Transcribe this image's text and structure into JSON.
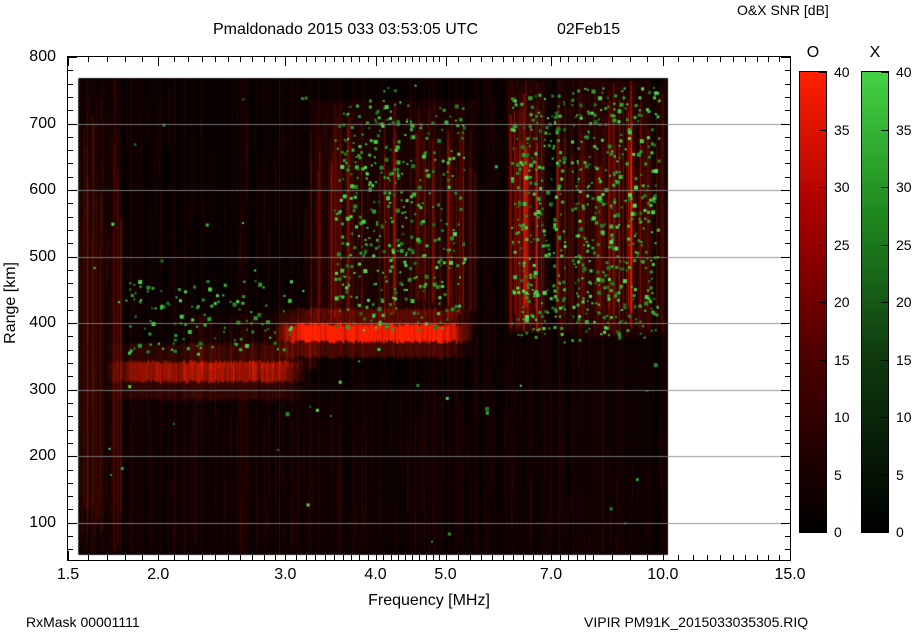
{
  "header": {
    "title": "Pmaldonado 2015 033 03:53:05 UTC",
    "date_label": "02Feb15",
    "colorbar_title": "O&X SNR [dB]"
  },
  "footer": {
    "left": "RxMask 00001111",
    "right": "VIPIR  PM91K_2015033035305.RIQ"
  },
  "colors": {
    "o_mode_accent": "#ff2000",
    "x_mode_accent": "#45d245",
    "grid": "#878787",
    "background": "#ffffff",
    "data_background": "#000000"
  },
  "chart_data": {
    "type": "heatmap",
    "title": "Pmaldonado 2015 033 03:53:05 UTC",
    "date": "02Feb15",
    "xlabel": "Frequency [MHz]",
    "ylabel": "Range [km]",
    "x_scale": "log",
    "xlim": [
      1.5,
      15.0
    ],
    "ylim": [
      44,
      800
    ],
    "x_major_ticks": [
      1.5,
      2.0,
      3.0,
      4.0,
      5.0,
      7.0,
      10.0,
      15.0
    ],
    "x_major_tick_labels": [
      "1.5",
      "2.0",
      "3.0",
      "4.0",
      "5.0",
      "7.0",
      "10.0",
      "15.0"
    ],
    "x_minor_ticks": [
      1.6,
      1.7,
      1.8,
      1.9,
      2.1,
      2.2,
      2.3,
      2.4,
      2.5,
      2.6,
      2.7,
      2.8,
      2.9,
      3.1,
      3.2,
      3.3,
      3.4,
      3.5,
      3.6,
      3.7,
      3.8,
      3.9,
      4.1,
      4.2,
      4.3,
      4.4,
      4.5,
      4.6,
      4.7,
      4.8,
      4.9,
      5.2,
      5.4,
      5.6,
      5.8,
      6.0,
      6.2,
      6.4,
      6.6,
      6.8,
      7.2,
      7.4,
      7.6,
      7.8,
      8.0,
      8.5,
      9.0,
      9.5,
      10.5,
      11.0,
      11.5,
      12.0,
      12.5,
      13.0,
      13.5,
      14.0,
      14.5
    ],
    "y_major_ticks": [
      800,
      700,
      600,
      500,
      400,
      300,
      200,
      100
    ],
    "y_major_tick_labels": [
      "800",
      "700",
      "600",
      "500",
      "400",
      "300",
      "200",
      "100"
    ],
    "y_minor_step": 20,
    "grid_lines_km": [
      100,
      200,
      300,
      400,
      500,
      600,
      700
    ],
    "data_extent": {
      "f_min": 1.55,
      "f_max": 10.15,
      "r_min": 52,
      "r_max": 768
    },
    "colorbars": [
      {
        "label": "O",
        "mode": "O-mode",
        "color_scale": "black-to-red",
        "min": 0,
        "max": 40,
        "ticks": [
          0,
          5,
          10,
          15,
          20,
          25,
          30,
          35,
          40
        ],
        "tick_labels": [
          "0",
          "5",
          "10",
          "15",
          "20",
          "25",
          "30",
          "35",
          "40"
        ],
        "gradient": [
          [
            "#000000",
            0
          ],
          [
            "#4c0000",
            38
          ],
          [
            "#aa0000",
            70
          ],
          [
            "#ff2000",
            100
          ]
        ]
      },
      {
        "label": "X",
        "mode": "X-mode",
        "color_scale": "black-to-green",
        "min": 0,
        "max": 40,
        "ticks": [
          0,
          5,
          10,
          15,
          20,
          25,
          30,
          35,
          40
        ],
        "tick_labels": [
          "0",
          "5",
          "10",
          "15",
          "20",
          "25",
          "30",
          "35",
          "40"
        ],
        "gradient": [
          [
            "#000000",
            0
          ],
          [
            "#0f3a0f",
            38
          ],
          [
            "#1f8a1f",
            70
          ],
          [
            "#45d245",
            100
          ]
        ]
      }
    ],
    "features": [
      {
        "name": "left-edge-rfi-striation",
        "type": "red_diffuse",
        "f0": 1.55,
        "f1": 1.78,
        "r0": 55,
        "r1": 765,
        "intensity": 0.3,
        "density": 1.0
      },
      {
        "name": "low-band-noise-floor",
        "type": "red_diffuse",
        "f0": 1.8,
        "f1": 5.4,
        "r0": 55,
        "r1": 310,
        "intensity": 0.1,
        "density": 0.3
      },
      {
        "name": "high-band-noise-floor",
        "type": "red_diffuse",
        "f0": 6.1,
        "f1": 10.0,
        "r0": 55,
        "r1": 380,
        "intensity": 0.07,
        "density": 0.15
      },
      {
        "name": "lower-echo-trace-320km",
        "type": "red_band",
        "f0": 1.7,
        "f1": 3.2,
        "r0": 312,
        "r1": 342,
        "intensity": 0.55
      },
      {
        "name": "echo-wing",
        "type": "red_diffuse",
        "f0": 2.2,
        "f1": 3.35,
        "r0": 330,
        "r1": 415,
        "intensity": 0.25,
        "density": 0.5
      },
      {
        "name": "main-F-trace-385km",
        "type": "red_band",
        "f0": 2.9,
        "f1": 5.45,
        "r0": 372,
        "r1": 398,
        "intensity": 0.95
      },
      {
        "name": "spread-F-red",
        "type": "red_diffuse",
        "f0": 3.25,
        "f1": 5.5,
        "r0": 395,
        "r1": 735,
        "intensity": 0.5,
        "density": 0.6
      },
      {
        "name": "red-column-6.1-6.85MHz",
        "type": "red_diffuse",
        "f0": 6.1,
        "f1": 6.85,
        "r0": 385,
        "r1": 765,
        "intensity": 0.8,
        "density": 0.8
      },
      {
        "name": "red-column-7.1-7.55MHz",
        "type": "red_diffuse",
        "f0": 7.1,
        "f1": 7.55,
        "r0": 385,
        "r1": 765,
        "intensity": 0.5,
        "density": 0.7
      },
      {
        "name": "red-column-7.6-9.6MHz",
        "type": "red_diffuse",
        "f0": 7.6,
        "f1": 9.6,
        "r0": 380,
        "r1": 765,
        "intensity": 0.65,
        "density": 0.8
      },
      {
        "name": "red-column-9.6-10.1MHz",
        "type": "red_diffuse",
        "f0": 9.6,
        "f1": 10.1,
        "r0": 380,
        "r1": 760,
        "intensity": 0.35,
        "density": 0.6
      },
      {
        "name": "x-mode-cluster-2MHz",
        "type": "green_speckle",
        "f0": 1.8,
        "f1": 3.05,
        "r0": 355,
        "r1": 465,
        "density": 0.09
      },
      {
        "name": "x-mode-cluster-4MHz",
        "type": "green_speckle",
        "f0": 3.5,
        "f1": 5.3,
        "r0": 390,
        "r1": 730,
        "density": 0.13
      },
      {
        "name": "x-mode-top-4MHz",
        "type": "green_speckle",
        "f0": 3.9,
        "f1": 4.6,
        "r0": 700,
        "r1": 762,
        "density": 0.08
      },
      {
        "name": "x-mode-cluster-6.7MHz",
        "type": "green_speckle",
        "f0": 6.15,
        "f1": 7.3,
        "r0": 380,
        "r1": 745,
        "density": 0.18
      },
      {
        "name": "x-mode-cluster-8.5MHz",
        "type": "green_speckle",
        "f0": 7.45,
        "f1": 9.85,
        "r0": 375,
        "r1": 755,
        "density": 0.16
      },
      {
        "name": "x-mode-sparse",
        "type": "green_speckle",
        "f0": 1.6,
        "f1": 10.1,
        "r0": 60,
        "r1": 760,
        "density": 0.002
      }
    ],
    "legend": {
      "O": "O-mode SNR shown on black-to-red scale (0-40 dB)",
      "X": "X-mode SNR shown on black-to-green scale (0-40 dB)"
    }
  }
}
